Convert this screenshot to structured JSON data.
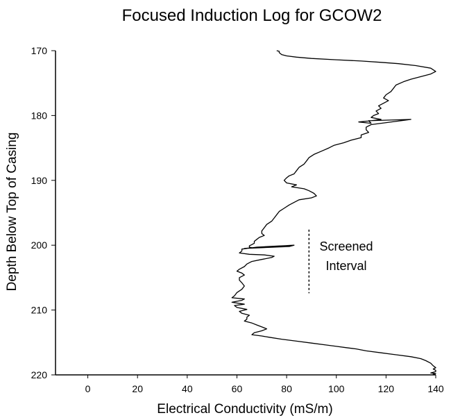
{
  "chart_data": {
    "type": "line",
    "title": "Focused Induction Log for GCOW2",
    "xlabel": "Electrical Conductivity (mS/m)",
    "ylabel": "Depth Below Top of Casing",
    "xlim": [
      -13,
      140
    ],
    "ylim": [
      170,
      220
    ],
    "y_inverted": true,
    "xticks": [
      0,
      20,
      40,
      60,
      80,
      100,
      120,
      140
    ],
    "yticks": [
      170,
      180,
      190,
      200,
      210,
      220
    ],
    "grid": false,
    "legend": "none",
    "line_color": "#000000",
    "series": [
      {
        "x": [
          76,
          77,
          77,
          78,
          80,
          84,
          90,
          100,
          110,
          118,
          125,
          132,
          138,
          140,
          138,
          134,
          130,
          127,
          124,
          123,
          122,
          120,
          119,
          121,
          119,
          117,
          118,
          116,
          117,
          115,
          114,
          118,
          114,
          109,
          114,
          113,
          130,
          114,
          112,
          112,
          113,
          110,
          110,
          106,
          103,
          99,
          97,
          94,
          91,
          89,
          88,
          87,
          85,
          84,
          83,
          81,
          80,
          79,
          80,
          84,
          82,
          87,
          89,
          90,
          91,
          92,
          90,
          85,
          83,
          81,
          79,
          77,
          76,
          75,
          74,
          72,
          71,
          70,
          70,
          71,
          69,
          68,
          67,
          67,
          66,
          65,
          65,
          66,
          63,
          81,
          83,
          68,
          62,
          62,
          61,
          65,
          71,
          75,
          74,
          70,
          66,
          64,
          63,
          61,
          60,
          62,
          63,
          61,
          61,
          62,
          63,
          62,
          60,
          59,
          58,
          63,
          62,
          58,
          63,
          59,
          60,
          64,
          61,
          62,
          65,
          64,
          64,
          63,
          66,
          68,
          70,
          72,
          70,
          67,
          66,
          70,
          73,
          78,
          84,
          90,
          96,
          100,
          104,
          108,
          112,
          118,
          124,
          130,
          134,
          136,
          138,
          139,
          140,
          139,
          140,
          140,
          139,
          138,
          140,
          139,
          140,
          140
        ],
        "y": [
          170.0,
          170.1,
          170.3,
          170.6,
          170.8,
          171.0,
          171.2,
          171.4,
          171.6,
          171.8,
          172.0,
          172.3,
          172.7,
          173.2,
          173.6,
          174.0,
          174.4,
          174.8,
          175.3,
          175.8,
          176.3,
          176.8,
          177.3,
          177.7,
          178.1,
          178.5,
          178.9,
          179.3,
          179.7,
          180.0,
          180.3,
          180.6,
          180.8,
          181.0,
          181.2,
          180.8,
          180.6,
          181.4,
          181.8,
          182.2,
          182.6,
          183.0,
          183.4,
          183.8,
          184.2,
          184.6,
          185.0,
          185.5,
          186.0,
          186.5,
          187.0,
          187.5,
          188.0,
          188.5,
          189.0,
          189.3,
          189.6,
          190.0,
          190.4,
          190.7,
          191.0,
          191.3,
          191.6,
          191.8,
          192.0,
          192.4,
          192.7,
          193.0,
          193.4,
          193.8,
          194.3,
          194.8,
          195.3,
          195.8,
          196.3,
          196.8,
          197.3,
          197.8,
          198.2,
          198.5,
          198.8,
          199.1,
          199.4,
          199.7,
          199.9,
          200.1,
          200.3,
          200.4,
          200.5,
          200.2,
          200.0,
          200.3,
          200.6,
          200.9,
          201.2,
          201.4,
          201.5,
          201.7,
          201.9,
          202.2,
          202.5,
          202.9,
          203.3,
          203.7,
          204.0,
          204.3,
          204.6,
          205.0,
          205.4,
          205.8,
          206.3,
          206.8,
          207.3,
          207.8,
          208.1,
          208.3,
          208.5,
          208.8,
          209.1,
          209.3,
          209.6,
          209.9,
          210.2,
          210.5,
          210.8,
          211.1,
          211.4,
          211.7,
          212.0,
          212.3,
          212.6,
          212.9,
          213.2,
          213.5,
          213.8,
          214.0,
          214.2,
          214.5,
          214.8,
          215.1,
          215.4,
          215.6,
          215.8,
          216.0,
          216.3,
          216.6,
          216.9,
          217.2,
          217.5,
          217.8,
          218.2,
          218.6,
          218.9,
          219.1,
          219.3,
          219.5,
          219.6,
          219.7,
          219.8,
          219.9,
          220.0,
          220.0
        ]
      }
    ],
    "annotations": [
      {
        "text_lines": [
          "Screened",
          "Interval"
        ],
        "x": 104,
        "y": 200.0
      }
    ],
    "screened_interval": {
      "x": 89,
      "y_top": 197.6,
      "y_bottom": 207.4
    }
  }
}
